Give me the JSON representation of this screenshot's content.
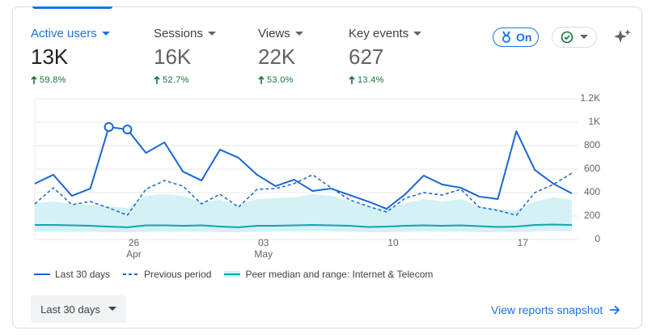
{
  "metrics": [
    {
      "name": "Active users",
      "value": "13K",
      "change": "59.8%"
    },
    {
      "name": "Sessions",
      "value": "16K",
      "change": "52.7%"
    },
    {
      "name": "Views",
      "value": "22K",
      "change": "53.0%"
    },
    {
      "name": "Key events",
      "value": "627",
      "change": "13.4%"
    }
  ],
  "toggle": "On",
  "chart_data": {
    "type": "line",
    "categories": [
      null,
      null,
      null,
      null,
      null,
      "26\nApr",
      null,
      null,
      null,
      null,
      null,
      null,
      "03\nMay",
      null,
      null,
      null,
      null,
      null,
      null,
      "10",
      null,
      null,
      null,
      null,
      null,
      null,
      "17",
      null,
      null,
      null
    ],
    "series": [
      {
        "name": "Last 30 days",
        "color": "#1967d2",
        "dash": false,
        "anomalies": [
          4,
          5
        ],
        "values": [
          476,
          552,
          372,
          434,
          959,
          938,
          738,
          828,
          579,
          503,
          766,
          697,
          552,
          455,
          510,
          414,
          434,
          379,
          324,
          262,
          386,
          545,
          469,
          441,
          366,
          345,
          924,
          593,
          476,
          393
        ]
      },
      {
        "name": "Previous period",
        "color": "#1967d2",
        "dash": true,
        "values": [
          303,
          441,
          297,
          324,
          269,
          207,
          428,
          503,
          455,
          303,
          386,
          276,
          428,
          434,
          476,
          552,
          441,
          338,
          283,
          234,
          352,
          400,
          379,
          428,
          276,
          248,
          207,
          400,
          469,
          566
        ]
      },
      {
        "name": "Peer median and range: Internet & Telecom",
        "color": "#12a4af",
        "band_color": "#d4f1f5",
        "dash": false,
        "values": [
          124,
          124,
          121,
          117,
          110,
          104,
          121,
          121,
          117,
          121,
          110,
          104,
          117,
          117,
          121,
          124,
          121,
          117,
          107,
          110,
          117,
          121,
          117,
          121,
          114,
          107,
          110,
          124,
          128,
          124
        ],
        "low": [
          69,
          69,
          66,
          66,
          62,
          62,
          66,
          69,
          66,
          69,
          62,
          62,
          66,
          69,
          69,
          72,
          69,
          66,
          62,
          62,
          66,
          69,
          66,
          69,
          62,
          62,
          62,
          69,
          72,
          69
        ],
        "high": [
          310,
          324,
          303,
          297,
          283,
          269,
          372,
          386,
          372,
          317,
          338,
          290,
          345,
          352,
          359,
          386,
          372,
          331,
          283,
          262,
          310,
          345,
          324,
          345,
          283,
          262,
          248,
          324,
          359,
          338
        ]
      }
    ],
    "ylim": [
      0,
      1200
    ],
    "yticks": [
      0,
      200,
      400,
      600,
      800,
      {
        "value": 1000,
        "label": "1K"
      },
      {
        "value": 1200,
        "label": "1.2K"
      }
    ],
    "grid": true
  },
  "footer": {
    "range_button": "Last 30 days",
    "link": "View reports snapshot"
  }
}
